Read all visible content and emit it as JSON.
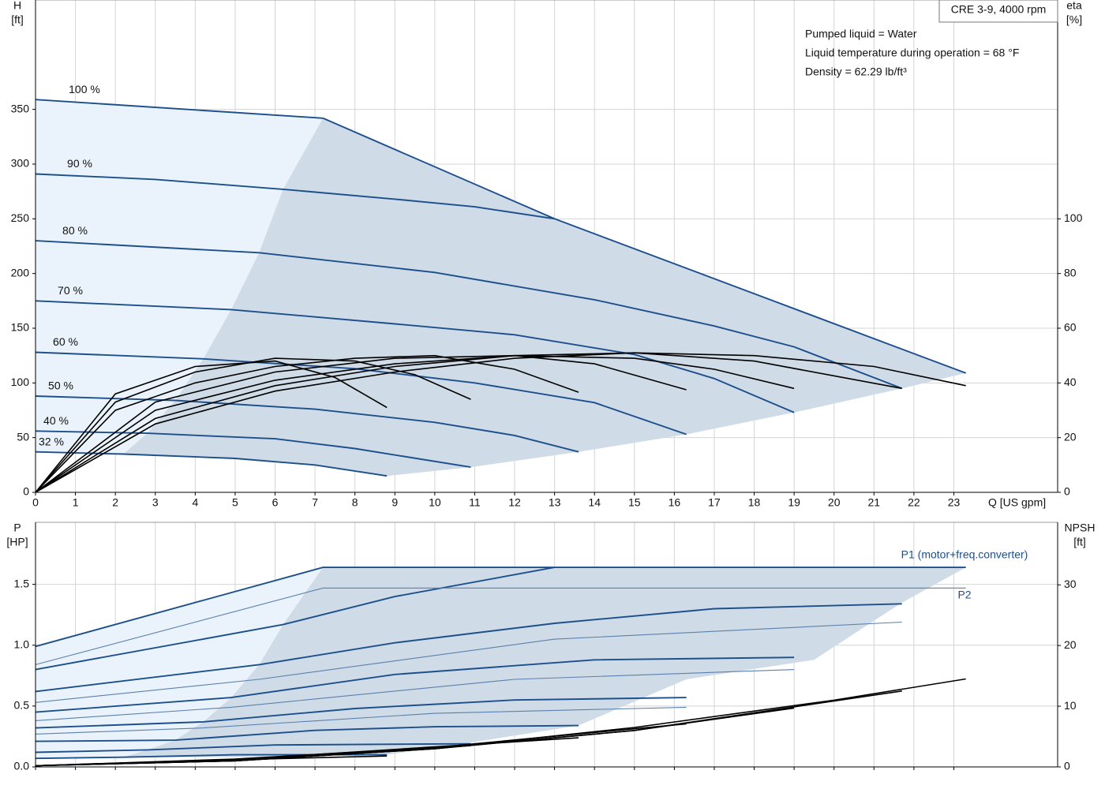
{
  "chart_data": [
    {
      "type": "line",
      "model": "CRE 3-9, 4000 rpm",
      "info": [
        "Pumped liquid = Water",
        "Liquid temperature during operation = 68 °F",
        "Density = 62.29 lb/ft³"
      ],
      "ylabel": "H",
      "yunit": "[ft]",
      "y2label": "eta",
      "y2unit": "[%]",
      "xlabel": "Q [US gpm]",
      "xlim": [
        0,
        25.6
      ],
      "xticks": [
        0,
        1,
        2,
        3,
        4,
        5,
        6,
        7,
        8,
        9,
        10,
        11,
        12,
        13,
        14,
        15,
        16,
        17,
        18,
        19,
        20,
        21,
        22,
        23
      ],
      "ylim": [
        0,
        450
      ],
      "yticks": [
        0,
        50,
        100,
        150,
        200,
        250,
        300,
        350
      ],
      "y2lim": [
        0,
        180
      ],
      "y2ticks": [
        0,
        20,
        40,
        60,
        80,
        100
      ],
      "grid": true,
      "areas": [
        {
          "color": "#eaf3fb",
          "x": [
            0,
            7.2,
            6.2,
            5.6,
            4.9,
            4.2,
            3.5,
            2.8,
            2.2,
            0
          ],
          "values": [
            359,
            342,
            277,
            219,
            167,
            122,
            84,
            54,
            35,
            37
          ]
        },
        {
          "color": "#cfdbe6",
          "x": [
            2.2,
            2.8,
            3.5,
            4.2,
            4.9,
            5.6,
            6.2,
            7.2,
            13,
            23.3,
            21.7,
            19,
            16.3,
            13.6,
            10.9,
            8.8,
            7,
            5
          ],
          "values": [
            35,
            54,
            84,
            122,
            167,
            219,
            277,
            342,
            250,
            109,
            95,
            73,
            53,
            37,
            23,
            15,
            25,
            31
          ]
        }
      ],
      "series": [
        {
          "name": "100 %",
          "color": "#1c4f8c",
          "x": [
            0,
            7.2
          ],
          "values": [
            359,
            342
          ]
        },
        {
          "name": "90 %",
          "color": "#1c4f8c",
          "x": [
            0,
            3,
            6.2,
            9,
            11,
            13
          ],
          "values": [
            291,
            286,
            277,
            268,
            261,
            250
          ]
        },
        {
          "name": "80 %",
          "color": "#1c4f8c",
          "x": [
            0,
            5.6,
            10,
            14,
            17,
            19,
            21.7
          ],
          "values": [
            230,
            219,
            201,
            176,
            152,
            133,
            95
          ]
        },
        {
          "name": "70 %",
          "color": "#1c4f8c",
          "x": [
            0,
            4.9,
            9,
            12,
            15,
            17,
            19
          ],
          "values": [
            175,
            167,
            154,
            144,
            126,
            104,
            73
          ]
        },
        {
          "name": "60 %",
          "color": "#1c4f8c",
          "x": [
            0,
            4.2,
            8,
            11,
            14,
            16.3
          ],
          "values": [
            128,
            122,
            113,
            100,
            82,
            53
          ]
        },
        {
          "name": "50 %",
          "color": "#1c4f8c",
          "x": [
            0,
            3.5,
            7,
            10,
            12,
            13.6
          ],
          "values": [
            88,
            84,
            76,
            64,
            52,
            37
          ]
        },
        {
          "name": "40 %",
          "color": "#1c4f8c",
          "x": [
            0,
            2.8,
            6,
            8,
            10.9
          ],
          "values": [
            56,
            54,
            49,
            40,
            23
          ]
        },
        {
          "name": "32 %",
          "color": "#1c4f8c",
          "x": [
            0,
            2.2,
            5,
            7,
            8.8
          ],
          "values": [
            37,
            35,
            31,
            25,
            15
          ]
        },
        {
          "color": "#1c4f8c",
          "x": [
            7.2,
            13,
            23.3
          ],
          "values": [
            342,
            250,
            109
          ]
        },
        {
          "color": "#000000",
          "axis": "y2",
          "x": [
            0,
            2,
            4,
            6,
            7.5,
            8.8
          ],
          "values": [
            0,
            36,
            46,
            48,
            42,
            31
          ]
        },
        {
          "color": "#000000",
          "axis": "y2",
          "x": [
            0,
            2,
            4,
            6,
            8,
            9.5,
            10.9
          ],
          "values": [
            0,
            33,
            44,
            49,
            48,
            43,
            34
          ]
        },
        {
          "color": "#000000",
          "axis": "y2",
          "x": [
            0,
            2,
            4,
            6,
            8,
            10,
            12,
            13.6
          ],
          "values": [
            0,
            30,
            40,
            46,
            49,
            50,
            45,
            36.6
          ]
        },
        {
          "color": "#000000",
          "axis": "y2",
          "x": [
            0,
            3,
            6,
            9,
            12,
            14,
            16.3
          ],
          "values": [
            0,
            33,
            44,
            49,
            50,
            47,
            37.5
          ]
        },
        {
          "color": "#000000",
          "axis": "y2",
          "x": [
            0,
            3,
            6,
            9,
            12,
            15,
            17,
            19
          ],
          "values": [
            0,
            30,
            41,
            47,
            50,
            49,
            45,
            38
          ]
        },
        {
          "color": "#000000",
          "axis": "y2",
          "x": [
            0,
            3,
            6,
            9,
            12,
            15,
            18,
            21.7
          ],
          "values": [
            0,
            27,
            39,
            46,
            50,
            51,
            48,
            38
          ]
        },
        {
          "color": "#000000",
          "axis": "y2",
          "x": [
            0,
            3,
            6,
            9,
            12,
            15,
            18,
            21,
            23.3
          ],
          "values": [
            0,
            25,
            37,
            44,
            49,
            51,
            50,
            46,
            39
          ]
        }
      ]
    },
    {
      "type": "line",
      "ylabel": "P",
      "yunit": "[HP]",
      "y2label": "NPSH",
      "y2unit": "[ft]",
      "labels": [
        "P1 (motor+freq.converter)",
        "P2"
      ],
      "xlim": [
        0,
        25.6
      ],
      "xticks": [
        0,
        1,
        2,
        3,
        4,
        5,
        6,
        7,
        8,
        9,
        10,
        11,
        12,
        13,
        14,
        15,
        16,
        17,
        18,
        19,
        20,
        21,
        22,
        23
      ],
      "ylim": [
        0,
        2.01
      ],
      "yticks": [
        {
          "value": 0,
          "label": "0.0"
        },
        0.5,
        {
          "value": 1,
          "label": "1.0"
        },
        1.5
      ],
      "y2lim": [
        0,
        40.3
      ],
      "y2ticks": [
        0,
        10,
        20,
        30
      ],
      "grid": true,
      "areas": [
        {
          "color": "#eaf3fb",
          "x": [
            0,
            7.2,
            6.2,
            5.6,
            4.9,
            4.2,
            3.5,
            2.8,
            2.2,
            0
          ],
          "values": [
            0.99,
            1.64,
            1.17,
            0.84,
            0.57,
            0.37,
            0.22,
            0.14,
            0.08,
            0.07
          ]
        },
        {
          "color": "#cfdbe6",
          "x": [
            2.2,
            2.8,
            3.5,
            4.2,
            4.9,
            5.6,
            6.2,
            7.2,
            23.3,
            21.7,
            19.5,
            16.3,
            13.6,
            10.9,
            8.8,
            5
          ],
          "values": [
            0.08,
            0.14,
            0.22,
            0.37,
            0.57,
            0.84,
            1.17,
            1.64,
            1.64,
            1.35,
            0.88,
            0.72,
            0.34,
            0.2,
            0.1,
            0.08
          ]
        }
      ],
      "series": [
        {
          "color": "#1c4f8c",
          "x": [
            0,
            7.2,
            23.3
          ],
          "values": [
            0.99,
            1.64,
            1.64
          ]
        },
        {
          "color": "#1c4f8c",
          "x": [
            0,
            6.2,
            9,
            13
          ],
          "values": [
            0.8,
            1.17,
            1.4,
            1.64
          ]
        },
        {
          "color": "#1c4f8c",
          "x": [
            0,
            5.6,
            9,
            13,
            17,
            21.7
          ],
          "values": [
            0.62,
            0.84,
            1.02,
            1.18,
            1.3,
            1.34
          ]
        },
        {
          "color": "#1c4f8c",
          "x": [
            0,
            4.9,
            9,
            14,
            19
          ],
          "values": [
            0.45,
            0.57,
            0.76,
            0.88,
            0.9
          ]
        },
        {
          "color": "#1c4f8c",
          "x": [
            0,
            4.2,
            8,
            12,
            16.3
          ],
          "values": [
            0.32,
            0.37,
            0.48,
            0.55,
            0.57
          ]
        },
        {
          "color": "#1c4f8c",
          "x": [
            0,
            3.5,
            7,
            10,
            13.6
          ],
          "values": [
            0.21,
            0.22,
            0.3,
            0.33,
            0.34
          ]
        },
        {
          "color": "#1c4f8c",
          "x": [
            0,
            2.8,
            6,
            10.9
          ],
          "values": [
            0.12,
            0.14,
            0.18,
            0.19
          ]
        },
        {
          "color": "#1c4f8c",
          "x": [
            0,
            2.2,
            5,
            8.8
          ],
          "values": [
            0.07,
            0.08,
            0.1,
            0.1
          ]
        },
        {
          "color": "#5a80ad",
          "x": [
            0,
            7.2,
            23.3
          ],
          "values": [
            0.84,
            1.47,
            1.47
          ]
        },
        {
          "color": "#5a80ad",
          "x": [
            0,
            5.6,
            13,
            21.7
          ],
          "values": [
            0.53,
            0.72,
            1.05,
            1.19
          ]
        },
        {
          "color": "#5a80ad",
          "x": [
            0,
            4.9,
            12,
            19
          ],
          "values": [
            0.38,
            0.49,
            0.72,
            0.8
          ]
        },
        {
          "color": "#5a80ad",
          "x": [
            0,
            4.2,
            10,
            16.3
          ],
          "values": [
            0.27,
            0.32,
            0.44,
            0.49
          ]
        },
        {
          "color": "#000000",
          "axis": "y2",
          "x": [
            0,
            5,
            10,
            15,
            20,
            23.3
          ],
          "values": [
            0.2,
            1,
            3,
            6.5,
            11,
            14.5
          ]
        },
        {
          "color": "#000000",
          "axis": "y2",
          "x": [
            0,
            5,
            10,
            15,
            21.7
          ],
          "values": [
            0.2,
            1,
            3,
            6,
            12.5
          ]
        },
        {
          "color": "#000000",
          "axis": "y2",
          "x": [
            0,
            5,
            10,
            15,
            19
          ],
          "values": [
            0.2,
            1,
            3,
            6,
            9.7
          ]
        },
        {
          "color": "#000000",
          "axis": "y2",
          "x": [
            0,
            5,
            10,
            16.3
          ],
          "values": [
            0.2,
            1.1,
            3.2,
            7.1
          ]
        },
        {
          "color": "#000000",
          "axis": "y2",
          "x": [
            0,
            5,
            10,
            13.6
          ],
          "values": [
            0.2,
            1.2,
            3.3,
            4.8
          ]
        },
        {
          "color": "#000000",
          "axis": "y2",
          "x": [
            0,
            5,
            10.9
          ],
          "values": [
            0.2,
            1.3,
            3.5
          ]
        },
        {
          "color": "#000000",
          "axis": "y2",
          "x": [
            0,
            5,
            8.8
          ],
          "values": [
            0.2,
            1.2,
            1.8
          ]
        }
      ]
    }
  ]
}
